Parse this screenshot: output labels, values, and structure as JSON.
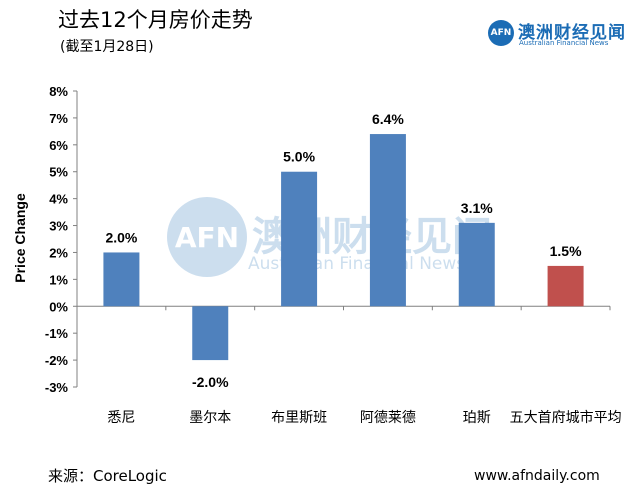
{
  "header": {
    "title": "过去12个月房价走势",
    "subtitle": "(截至1月28日)"
  },
  "logo": {
    "mark": "AFN",
    "name_cn": "澳洲财经见闻",
    "name_en": "Australian Financial News"
  },
  "watermark": {
    "mark": "AFN",
    "name_cn": "澳洲财经见闻",
    "name_en": "Australian Financial News"
  },
  "footer": {
    "source": "来源：CoreLogic",
    "website": "www.afndaily.com"
  },
  "chart_data": {
    "type": "bar",
    "title": "过去12个月房价走势",
    "ylabel": "Price Change",
    "xlabel": "",
    "categories": [
      "悉尼",
      "墨尔本",
      "布里斯班",
      "阿德莱德",
      "珀斯",
      "五大首府城市平均"
    ],
    "values": [
      2.0,
      -2.0,
      5.0,
      6.4,
      3.1,
      1.5
    ],
    "data_labels": [
      "2.0%",
      "-2.0%",
      "5.0%",
      "6.4%",
      "3.1%",
      "1.5%"
    ],
    "ylim": [
      -3,
      8
    ],
    "yticks": [
      -3,
      -2,
      -1,
      0,
      1,
      2,
      3,
      4,
      5,
      6,
      7,
      8
    ],
    "ytick_labels": [
      "-3%",
      "-2%",
      "-1%",
      "0%",
      "1%",
      "2%",
      "3%",
      "4%",
      "5%",
      "6%",
      "7%",
      "8%"
    ],
    "bar_colors": [
      "#4f81bd",
      "#4f81bd",
      "#4f81bd",
      "#4f81bd",
      "#4f81bd",
      "#c0504d"
    ],
    "grid": false,
    "legend": "none"
  }
}
